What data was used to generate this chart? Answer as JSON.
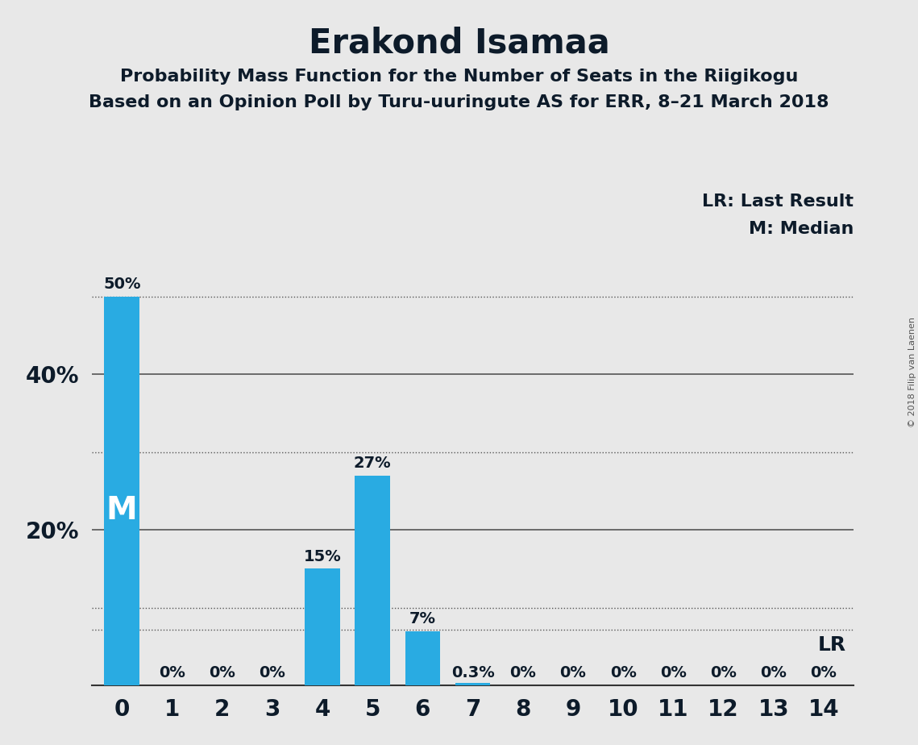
{
  "title": "Erakond Isamaa",
  "subtitle1": "Probability Mass Function for the Number of Seats in the Riigikogu",
  "subtitle2": "Based on an Opinion Poll by Turu-uuringute AS for ERR, 8–21 March 2018",
  "copyright": "© 2018 Filip van Laenen",
  "x_labels": [
    0,
    1,
    2,
    3,
    4,
    5,
    6,
    7,
    8,
    9,
    10,
    11,
    12,
    13,
    14
  ],
  "values": [
    0.5,
    0.0,
    0.0,
    0.0,
    0.15,
    0.27,
    0.07,
    0.003,
    0.0,
    0.0,
    0.0,
    0.0,
    0.0,
    0.0,
    0.0
  ],
  "bar_labels": [
    "50%",
    "0%",
    "0%",
    "0%",
    "15%",
    "27%",
    "7%",
    "0.3%",
    "0%",
    "0%",
    "0%",
    "0%",
    "0%",
    "0%",
    "0%"
  ],
  "bar_color": "#29ABE2",
  "background_color": "#E8E8E8",
  "median_seat": 0,
  "lr_value": 0.072,
  "ylim": [
    0,
    0.575
  ],
  "yticks": [
    0.2,
    0.4
  ],
  "ytick_labels": [
    "20%",
    "40%"
  ],
  "solid_grid": [
    0.2,
    0.4
  ],
  "dotted_grid": [
    0.1,
    0.3,
    0.5
  ],
  "legend_lr": "LR: Last Result",
  "legend_m": "M: Median",
  "lr_label": "LR",
  "m_label": "M",
  "title_fontsize": 30,
  "subtitle_fontsize": 16,
  "axis_fontsize": 20,
  "bar_label_fontsize": 14,
  "legend_fontsize": 16,
  "m_label_fontsize": 28
}
